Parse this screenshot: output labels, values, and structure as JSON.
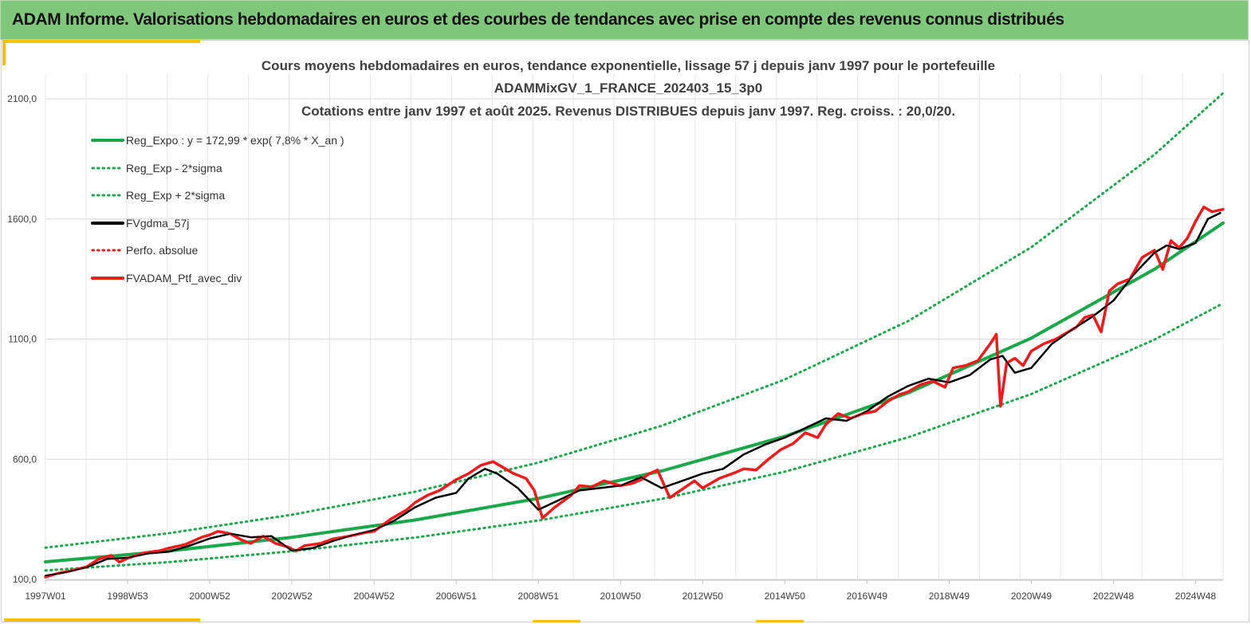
{
  "banner": {
    "title": "ADAM Informe. Valorisations hebdomadaires en euros et des courbes de tendances avec prise en compte des revenus connus distribués"
  },
  "chart_data": {
    "type": "line",
    "title_lines": [
      "Cours moyens hebdomadaires  en euros, tendance exponentielle, lissage 57 j depuis janv 1997 pour le portefeuille",
      "ADAMMixGV_1_FRANCE_202403_15_3p0",
      "Cotations  entre janv 1997 et août 2025. Revenus DISTRIBUES depuis janv 1997. Reg. croiss. : 20,0/20."
    ],
    "x_tick_labels": [
      "1997W01",
      "1998W53",
      "2000W52",
      "2002W52",
      "2004W52",
      "2006W51",
      "2008W51",
      "2010W50",
      "2012W50",
      "2014W50",
      "2016W49",
      "2018W49",
      "2020W49",
      "2022W48",
      "2024W48"
    ],
    "x_tick_years": [
      1997.0,
      1999.0,
      2001.0,
      2003.0,
      2005.0,
      2007.0,
      2009.0,
      2011.0,
      2013.0,
      2015.0,
      2017.0,
      2019.0,
      2021.0,
      2023.0,
      2025.0
    ],
    "xlim": [
      1997.0,
      2025.67
    ],
    "y_tick_labels": [
      "100,0",
      "600,0",
      "1100,0",
      "1600,0",
      "2100,0"
    ],
    "y_ticks": [
      100,
      600,
      1100,
      1600,
      2100
    ],
    "ylim": [
      100,
      2100
    ],
    "grid": true,
    "legend_position": "top-left",
    "colors": {
      "trend": "#1aa84a",
      "smooth": "#000000",
      "portfolio": "#ee1c1c"
    },
    "series": [
      {
        "name": "Reg_Expo : y = 172,99 * exp( 7,8% *  X_an )",
        "style": "solid",
        "color": "#1aa84a",
        "x": [
          1997.0,
          2000.0,
          2003.0,
          2006.0,
          2009.0,
          2012.0,
          2015.0,
          2018.0,
          2021.0,
          2024.0,
          2025.67
        ],
        "values": [
          172.99,
          218,
          275,
          347,
          437,
          551,
          695,
          876,
          1104,
          1391,
          1583
        ]
      },
      {
        "name": "Reg_Exp - 2*sigma",
        "style": "dotted",
        "color": "#1aa84a",
        "x": [
          1997.0,
          2000.0,
          2003.0,
          2006.0,
          2009.0,
          2012.0,
          2015.0,
          2018.0,
          2021.0,
          2024.0,
          2025.67
        ],
        "values": [
          137,
          172,
          217,
          274,
          345,
          435,
          548,
          691,
          871,
          1098,
          1249
        ]
      },
      {
        "name": "Reg_Exp + 2*sigma",
        "style": "dotted",
        "color": "#1aa84a",
        "x": [
          1997.0,
          2000.0,
          2003.0,
          2006.0,
          2009.0,
          2012.0,
          2015.0,
          2018.0,
          2021.0,
          2024.0,
          2025.67
        ],
        "values": [
          232,
          292,
          369,
          465,
          586,
          739,
          932,
          1175,
          1482,
          1868,
          2124
        ]
      },
      {
        "name": "FVgdma_57j",
        "style": "solid",
        "color": "#000000",
        "x": [
          1997.0,
          1997.5,
          1998.0,
          1998.5,
          1999.0,
          1999.5,
          2000.0,
          2000.5,
          2001.0,
          2001.5,
          2002.0,
          2002.5,
          2003.0,
          2003.5,
          2004.0,
          2004.5,
          2005.0,
          2005.5,
          2006.0,
          2006.5,
          2007.0,
          2007.3,
          2007.7,
          2008.0,
          2008.5,
          2009.0,
          2009.5,
          2010.0,
          2010.5,
          2011.0,
          2011.5,
          2012.0,
          2012.5,
          2013.0,
          2013.5,
          2014.0,
          2014.5,
          2015.0,
          2015.5,
          2016.0,
          2016.5,
          2017.0,
          2017.5,
          2018.0,
          2018.5,
          2019.0,
          2019.5,
          2020.0,
          2020.3,
          2020.6,
          2021.0,
          2021.5,
          2022.0,
          2022.5,
          2023.0,
          2023.5,
          2024.0,
          2024.3,
          2024.6,
          2025.0,
          2025.3,
          2025.6
        ],
        "values": [
          115,
          130,
          150,
          185,
          190,
          208,
          215,
          240,
          270,
          290,
          275,
          280,
          220,
          230,
          260,
          285,
          305,
          345,
          400,
          440,
          460,
          520,
          560,
          540,
          480,
          390,
          430,
          470,
          480,
          490,
          525,
          480,
          510,
          540,
          560,
          620,
          660,
          690,
          730,
          770,
          760,
          800,
          860,
          905,
          935,
          920,
          950,
          1015,
          1030,
          960,
          980,
          1080,
          1140,
          1195,
          1260,
          1370,
          1460,
          1490,
          1475,
          1500,
          1600,
          1625
        ]
      },
      {
        "name": "Perfo. absolue",
        "style": "dotted",
        "color": "#ee1c1c",
        "x": [],
        "values": []
      },
      {
        "name": "FVADAM_Ptf_avec_div",
        "style": "solid",
        "color": "#ee1c1c",
        "x": [
          1997.0,
          1997.3,
          1997.6,
          1998.0,
          1998.3,
          1998.6,
          1998.8,
          1999.0,
          1999.4,
          1999.8,
          2000.0,
          2000.4,
          2000.8,
          2001.0,
          2001.2,
          2001.5,
          2001.8,
          2002.0,
          2002.3,
          2002.6,
          2002.9,
          2003.1,
          2003.3,
          2003.7,
          2004.0,
          2004.4,
          2004.8,
          2005.0,
          2005.4,
          2005.8,
          2006.0,
          2006.3,
          2006.6,
          2007.0,
          2007.3,
          2007.6,
          2007.9,
          2008.2,
          2008.4,
          2008.7,
          2008.9,
          2009.1,
          2009.4,
          2009.8,
          2010.0,
          2010.3,
          2010.6,
          2011.0,
          2011.3,
          2011.5,
          2011.7,
          2011.9,
          2012.2,
          2012.5,
          2012.8,
          2013.0,
          2013.4,
          2013.8,
          2014.0,
          2014.3,
          2014.6,
          2014.9,
          2015.2,
          2015.5,
          2015.8,
          2016.0,
          2016.3,
          2016.6,
          2016.9,
          2017.2,
          2017.5,
          2017.8,
          2018.0,
          2018.3,
          2018.6,
          2018.9,
          2019.1,
          2019.4,
          2019.7,
          2020.0,
          2020.15,
          2020.25,
          2020.4,
          2020.6,
          2020.8,
          2021.0,
          2021.3,
          2021.6,
          2021.9,
          2022.1,
          2022.3,
          2022.5,
          2022.7,
          2022.9,
          2023.1,
          2023.4,
          2023.7,
          2024.0,
          2024.2,
          2024.4,
          2024.6,
          2024.8,
          2025.0,
          2025.2,
          2025.4,
          2025.67
        ],
        "values": [
          110,
          125,
          135,
          152,
          185,
          200,
          172,
          188,
          210,
          220,
          230,
          245,
          275,
          285,
          300,
          290,
          262,
          250,
          280,
          250,
          235,
          218,
          240,
          250,
          268,
          280,
          295,
          300,
          350,
          390,
          420,
          450,
          470,
          515,
          540,
          575,
          590,
          560,
          540,
          520,
          470,
          355,
          400,
          450,
          490,
          485,
          510,
          490,
          500,
          515,
          540,
          555,
          440,
          475,
          510,
          480,
          520,
          545,
          560,
          555,
          600,
          640,
          665,
          710,
          690,
          745,
          790,
          770,
          790,
          800,
          840,
          870,
          880,
          910,
          925,
          900,
          980,
          990,
          1010,
          1080,
          1120,
          820,
          1000,
          1020,
          990,
          1050,
          1080,
          1100,
          1130,
          1150,
          1190,
          1200,
          1130,
          1300,
          1330,
          1350,
          1440,
          1470,
          1390,
          1510,
          1480,
          1520,
          1590,
          1650,
          1630,
          1640
        ]
      }
    ]
  }
}
